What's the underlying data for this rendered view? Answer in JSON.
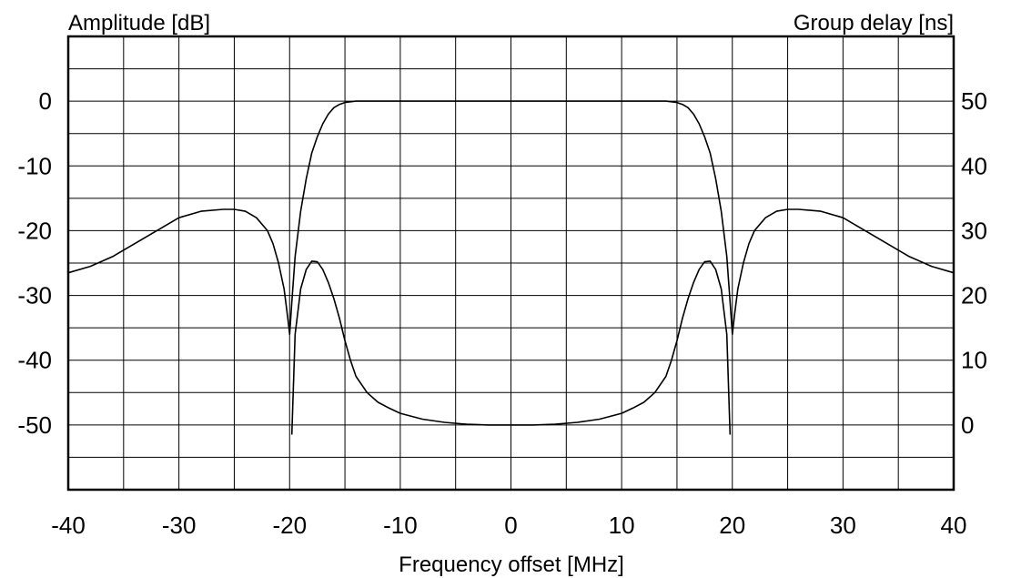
{
  "chart_data": {
    "type": "line",
    "title": "",
    "xlabel": "Frequency offset [MHz]",
    "ylabel_left": "Amplitude [dB]",
    "ylabel_right": "Group delay [ns]",
    "xlim": [
      -40,
      40
    ],
    "ylim_left": [
      -60,
      10
    ],
    "ylim_right": [
      -10,
      60
    ],
    "grid": true,
    "x_ticks": [
      "-40",
      "-30",
      "-20",
      "-10",
      "0",
      "10",
      "20",
      "30",
      "40"
    ],
    "x_tick_values": [
      -40,
      -30,
      -20,
      -10,
      0,
      10,
      20,
      30,
      40
    ],
    "y_left_ticks": [
      "0",
      "-10",
      "-20",
      "-30",
      "-40",
      "-50"
    ],
    "y_left_tick_values": [
      0,
      -10,
      -20,
      -30,
      -40,
      -50
    ],
    "y_right_ticks": [
      "50",
      "40",
      "30",
      "20",
      "10",
      "0"
    ],
    "y_right_tick_values": [
      50,
      40,
      30,
      20,
      10,
      0
    ],
    "series": [
      {
        "axis": "left",
        "color": "#000000",
        "x": [
          -40,
          -38,
          -36,
          -34,
          -32,
          -30,
          -28,
          -26,
          -25,
          -24,
          -23,
          -22,
          -21.5,
          -21,
          -20.5,
          -20.2,
          -20,
          -19.8,
          -19.5,
          -19,
          -18.5,
          -18,
          -17.5,
          -17,
          -16.5,
          -16,
          -15.5,
          -15,
          -14,
          -13,
          -12,
          0,
          12,
          13,
          14,
          15,
          15.5,
          16,
          16.5,
          17,
          17.5,
          18,
          18.5,
          19,
          19.5,
          19.8,
          20,
          20.2,
          20.5,
          21,
          21.5,
          22,
          23,
          24,
          25,
          26,
          28,
          30,
          32,
          34,
          36,
          38,
          40
        ],
        "y": [
          -26.5,
          -25.5,
          -24,
          -22,
          -20,
          -18,
          -17,
          -16.7,
          -16.7,
          -17,
          -18,
          -20,
          -22,
          -25,
          -29,
          -33,
          -36,
          -31,
          -24,
          -17,
          -12,
          -8,
          -5.5,
          -3.5,
          -2,
          -1,
          -0.5,
          -0.2,
          0,
          0,
          0,
          0,
          0,
          0,
          0,
          -0.2,
          -0.5,
          -1,
          -2,
          -3.5,
          -5.5,
          -8,
          -12,
          -17,
          -24,
          -31,
          -36,
          -33,
          -29,
          -25,
          -22,
          -20,
          -18,
          -17,
          -16.7,
          -16.7,
          -17,
          -18,
          -20,
          -22,
          -24,
          -25.5,
          -26.5
        ]
      },
      {
        "axis": "right",
        "color": "#000000",
        "x": [
          -19.8,
          -19.5,
          -19,
          -18.5,
          -18,
          -17.5,
          -17,
          -16.5,
          -16,
          -15.5,
          -15,
          -14.5,
          -14,
          -13,
          -12,
          -11,
          -10,
          -8,
          -6,
          -4,
          -2,
          0,
          2,
          4,
          6,
          8,
          10,
          11,
          12,
          13,
          14,
          14.5,
          15,
          15.5,
          16,
          16.5,
          17,
          17.5,
          18,
          18.5,
          19,
          19.5,
          19.8
        ],
        "y": [
          -1.5,
          14,
          21,
          24,
          25.3,
          25.2,
          24,
          22,
          19.5,
          16.5,
          13,
          10,
          7.5,
          5,
          3.5,
          2.6,
          1.8,
          0.9,
          0.4,
          0.1,
          0,
          0,
          0,
          0.1,
          0.4,
          0.9,
          1.8,
          2.6,
          3.5,
          5,
          7.5,
          10,
          13,
          16.5,
          19.5,
          22,
          24,
          25.2,
          25.3,
          24,
          21,
          14,
          -1.5
        ]
      }
    ]
  }
}
